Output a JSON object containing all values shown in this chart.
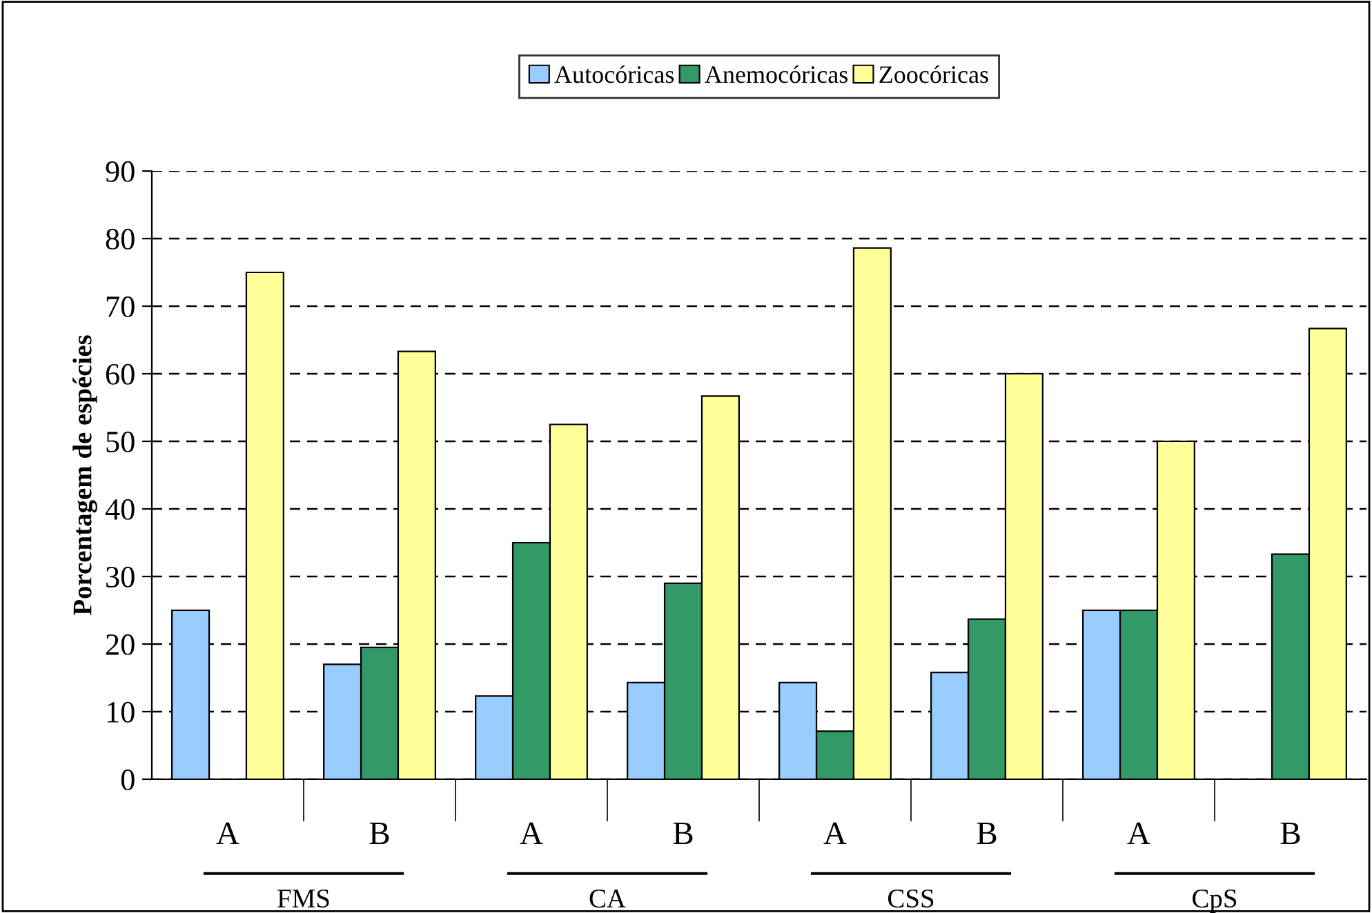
{
  "chart_data": {
    "type": "bar",
    "ylabel": "Porcentagem de espécies",
    "categories": [
      "A",
      "B",
      "A",
      "B",
      "A",
      "B",
      "A",
      "B"
    ],
    "series": [
      {
        "name": "Autocóricas",
        "color": "#99ccff",
        "values": [
          25,
          17,
          12.3,
          14.3,
          14.3,
          15.8,
          25,
          null
        ]
      },
      {
        "name": "Anemocóricas",
        "color": "#339966",
        "values": [
          null,
          19.5,
          35,
          29,
          7.1,
          23.7,
          25,
          33.3
        ]
      },
      {
        "name": "Zoocóricas",
        "color": "#ffff99",
        "values": [
          75,
          63.3,
          52.5,
          56.7,
          78.6,
          60,
          50,
          66.7
        ]
      }
    ],
    "annotations": [
      "FMS",
      "CA",
      "CSS",
      "CpS"
    ],
    "ylim": [
      0,
      90
    ],
    "yticks": [
      0,
      10,
      20,
      30,
      40,
      50,
      60,
      70,
      80,
      90
    ],
    "grid": "y",
    "legend": "top"
  }
}
